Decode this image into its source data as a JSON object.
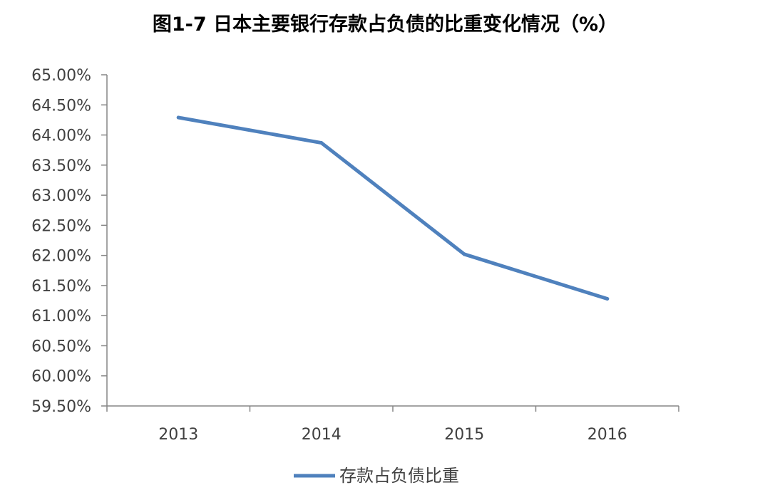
{
  "chart_data": {
    "type": "line",
    "title": "图1-7  日本主要银行存款占负债的比重变化情况（%）",
    "xlabel": "",
    "ylabel": "",
    "categories": [
      "2013",
      "2014",
      "2015",
      "2016"
    ],
    "series": [
      {
        "name": "存款占负债比重",
        "values": [
          64.29,
          63.87,
          62.02,
          61.28
        ],
        "color": "#4f81bd"
      }
    ],
    "ylim": [
      59.5,
      65.0
    ],
    "ystep": 0.5,
    "y_tick_format": "percent_2dp",
    "grid": false,
    "legend": "bottom-center"
  }
}
